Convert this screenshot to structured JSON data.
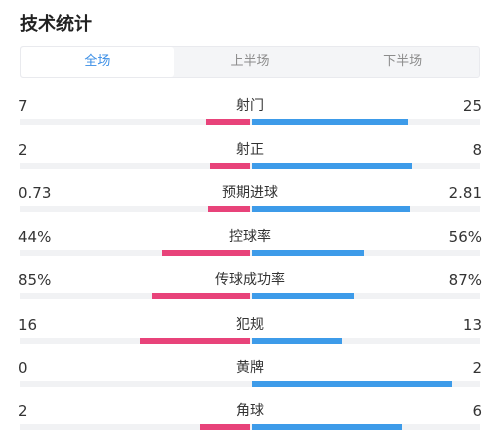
{
  "title": "技术统计",
  "tabs": [
    {
      "label": "全场",
      "active": true
    },
    {
      "label": "上半场",
      "active": false
    },
    {
      "label": "下半场",
      "active": false
    }
  ],
  "colors": {
    "home": "#e8437a",
    "away": "#3d9be9",
    "active_tab": "#3a8ee6"
  },
  "stats": [
    {
      "label": "射门",
      "left": "7",
      "right": "25",
      "left_share": 0.22,
      "right_share": 0.78
    },
    {
      "label": "射正",
      "left": "2",
      "right": "8",
      "left_share": 0.2,
      "right_share": 0.8
    },
    {
      "label": "预期进球",
      "left": "0.73",
      "right": "2.81",
      "left_share": 0.21,
      "right_share": 0.79
    },
    {
      "label": "控球率",
      "left": "44%",
      "right": "56%",
      "left_share": 0.44,
      "right_share": 0.56
    },
    {
      "label": "传球成功率",
      "left": "85%",
      "right": "87%",
      "left_share": 0.49,
      "right_share": 0.51
    },
    {
      "label": "犯规",
      "left": "16",
      "right": "13",
      "left_share": 0.55,
      "right_share": 0.45
    },
    {
      "label": "黄牌",
      "left": "0",
      "right": "2",
      "left_share": 0.0,
      "right_share": 1.0
    },
    {
      "label": "角球",
      "left": "2",
      "right": "6",
      "left_share": 0.25,
      "right_share": 0.75
    }
  ]
}
